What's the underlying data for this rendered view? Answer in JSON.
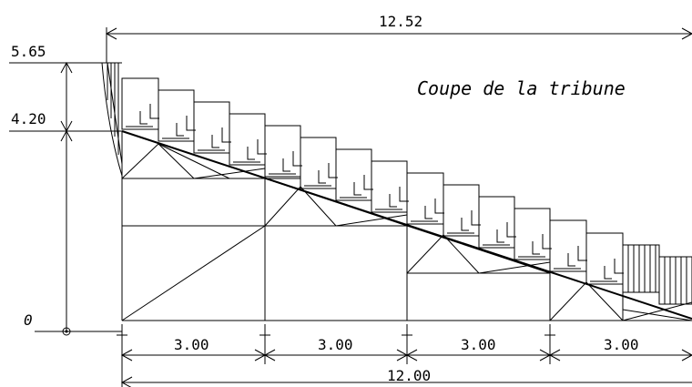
{
  "title": "Coupe de la tribune",
  "levels": {
    "top": "5.65",
    "mid": "4.20",
    "base": "0"
  },
  "dimensions": {
    "overall_width": "12.52",
    "total_base": "12.00",
    "bays": [
      "3.00",
      "3.00",
      "3.00",
      "3.00"
    ]
  }
}
